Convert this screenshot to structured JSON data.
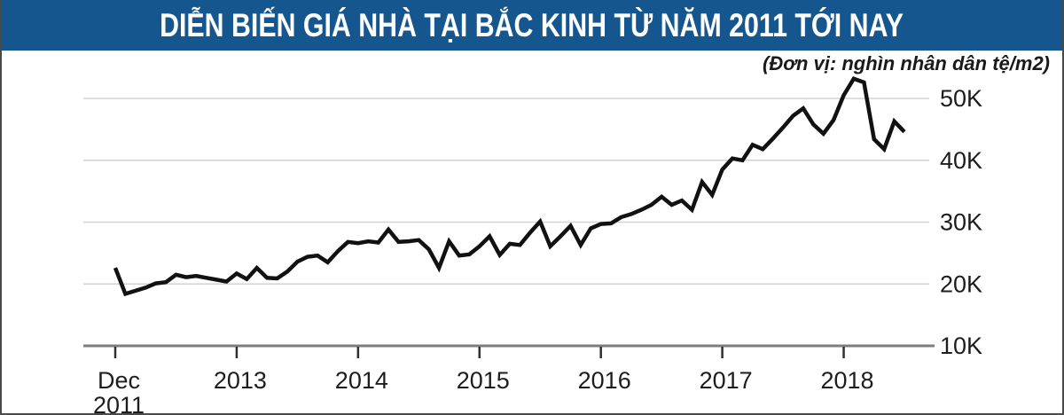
{
  "header": {
    "title": "DIỄN BIẾN GIÁ NHÀ TẠI BẮC KINH TỪ NĂM 2011 TỚI NAY",
    "background_color": "#16568F",
    "title_color": "#ffffff"
  },
  "subtitle": "(Đơn vị: nghìn nhân dân tệ/m2)",
  "frame": {
    "border_color": "#4a4a4a",
    "background_color": "#ffffff"
  },
  "chart_data": {
    "type": "line",
    "title": "DIỄN BIẾN GIÁ NHÀ TẠI BẮC KINH TỪ NĂM 2011 TỚI NAY",
    "unit_label": "(Đơn vị: nghìn nhân dân tệ/m2)",
    "xlabel": "",
    "ylabel": "nghìn nhân dân tệ/m2",
    "ylim": [
      10,
      55
    ],
    "grid": "horizontal-only",
    "legend": "none",
    "x_months": [
      "2011-12",
      "2012-01",
      "2012-02",
      "2012-03",
      "2012-04",
      "2012-05",
      "2012-06",
      "2012-07",
      "2012-08",
      "2012-09",
      "2012-10",
      "2012-11",
      "2012-12",
      "2013-01",
      "2013-02",
      "2013-03",
      "2013-04",
      "2013-05",
      "2013-06",
      "2013-07",
      "2013-08",
      "2013-09",
      "2013-10",
      "2013-11",
      "2013-12",
      "2014-01",
      "2014-02",
      "2014-03",
      "2014-04",
      "2014-05",
      "2014-06",
      "2014-07",
      "2014-08",
      "2014-09",
      "2014-10",
      "2014-11",
      "2014-12",
      "2015-01",
      "2015-02",
      "2015-03",
      "2015-04",
      "2015-05",
      "2015-06",
      "2015-07",
      "2015-08",
      "2015-09",
      "2015-10",
      "2015-11",
      "2015-12",
      "2016-01",
      "2016-02",
      "2016-03",
      "2016-04",
      "2016-05",
      "2016-06",
      "2016-07",
      "2016-08",
      "2016-09",
      "2016-10",
      "2016-11",
      "2016-12",
      "2017-01",
      "2017-02",
      "2017-03",
      "2017-04",
      "2017-05",
      "2017-06",
      "2017-07",
      "2017-08",
      "2017-09",
      "2017-10",
      "2017-11",
      "2017-12",
      "2018-01",
      "2018-02",
      "2018-03",
      "2018-04",
      "2018-05",
      "2018-06"
    ],
    "values": [
      22.6,
      18.4,
      18.9,
      19.4,
      20.1,
      20.3,
      21.5,
      21.1,
      21.3,
      21.0,
      20.7,
      20.4,
      21.7,
      20.8,
      22.6,
      21.0,
      20.9,
      22.0,
      23.6,
      24.4,
      24.6,
      23.5,
      25.3,
      26.8,
      26.6,
      26.9,
      26.7,
      28.8,
      26.8,
      26.9,
      27.1,
      25.6,
      22.6,
      26.9,
      24.6,
      24.8,
      26.1,
      27.7,
      24.7,
      26.5,
      26.3,
      28.3,
      30.1,
      26.1,
      27.7,
      29.4,
      26.3,
      29.0,
      29.7,
      29.8,
      30.8,
      31.3,
      32.0,
      32.8,
      34.1,
      32.8,
      33.5,
      32.0,
      36.5,
      34.4,
      38.5,
      40.3,
      40.0,
      42.5,
      41.8,
      43.5,
      45.3,
      47.2,
      48.4,
      45.8,
      44.3,
      46.5,
      50.5,
      53.2,
      52.6,
      43.4,
      41.8,
      46.3,
      44.6
    ],
    "y_ticks": [
      {
        "value": 10,
        "label": "10K"
      },
      {
        "value": 20,
        "label": "20K"
      },
      {
        "value": 30,
        "label": "30K"
      },
      {
        "value": 40,
        "label": "40K"
      },
      {
        "value": 50,
        "label": "50K"
      }
    ],
    "x_ticks": [
      {
        "m": 0,
        "lines": [
          "Dec",
          "2011"
        ]
      },
      {
        "m": 12,
        "lines": [
          "2013"
        ]
      },
      {
        "m": 24,
        "lines": [
          "2014"
        ]
      },
      {
        "m": 36,
        "lines": [
          "2015"
        ]
      },
      {
        "m": 48,
        "lines": [
          "2016"
        ]
      },
      {
        "m": 60,
        "lines": [
          "2017"
        ]
      },
      {
        "m": 72,
        "lines": [
          "2018"
        ]
      }
    ],
    "colors": {
      "line": "#111111",
      "grid": "#d2d2d2",
      "axis": "#7d7d7d",
      "tick": "#2f2f2f",
      "label_text": "#1d1d1d"
    }
  }
}
